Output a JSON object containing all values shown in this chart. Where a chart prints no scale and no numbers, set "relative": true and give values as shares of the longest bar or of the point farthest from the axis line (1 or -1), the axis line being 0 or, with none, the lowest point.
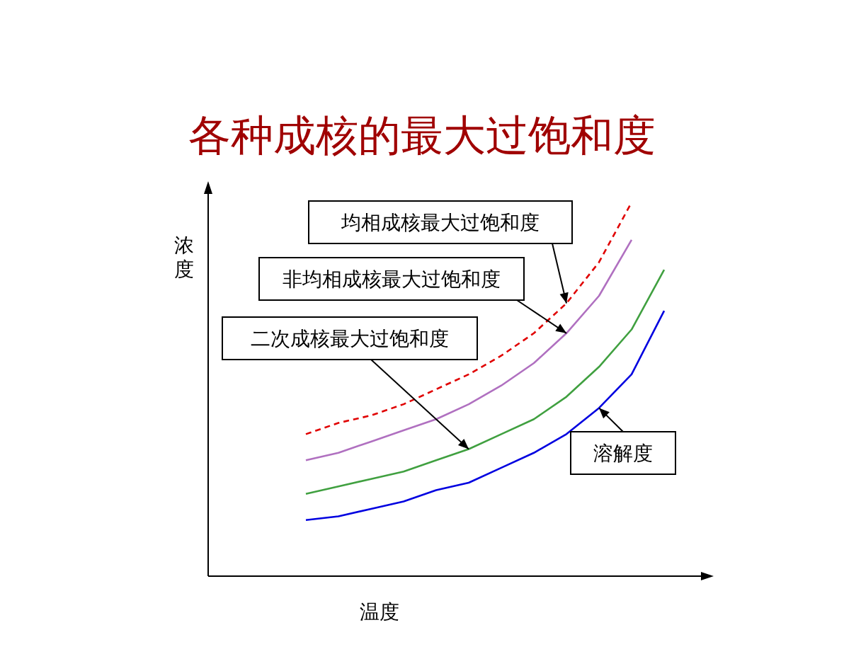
{
  "chart_data": {
    "type": "line",
    "title": "各种成核的最大过饱和度",
    "xlabel": "温度",
    "ylabel": "浓度",
    "relative": true,
    "annotations": [
      "均相成核最大过饱和度",
      "非均相成核最大过饱和度",
      "二次成核最大过饱和度",
      "溶解度"
    ],
    "categories": [
      null,
      null,
      null,
      null,
      null,
      null,
      null,
      null,
      null,
      null,
      null,
      null,
      null,
      null,
      null,
      null
    ],
    "series": [
      {
        "color": "#e00000",
        "line_style": "dashed",
        "values": [
          null,
          null,
          null,
          0.38,
          0.41,
          0.43,
          0.46,
          0.5,
          0.54,
          0.59,
          0.65,
          0.73,
          0.84,
          1.0,
          null,
          null
        ]
      },
      {
        "color": "#b070c0",
        "values": [
          null,
          null,
          null,
          0.31,
          0.33,
          0.36,
          0.39,
          0.42,
          0.46,
          0.51,
          0.57,
          0.65,
          0.75,
          0.9,
          null,
          null
        ]
      },
      {
        "color": "#40a040",
        "values": [
          null,
          null,
          null,
          0.22,
          0.24,
          0.26,
          0.28,
          0.31,
          0.34,
          0.38,
          0.42,
          0.48,
          0.56,
          0.66,
          0.82,
          null
        ]
      },
      {
        "color": "#0000e0",
        "values": [
          null,
          null,
          null,
          0.15,
          0.16,
          0.18,
          0.2,
          0.23,
          0.25,
          0.29,
          0.33,
          0.38,
          0.45,
          0.54,
          0.71,
          null
        ]
      }
    ]
  }
}
